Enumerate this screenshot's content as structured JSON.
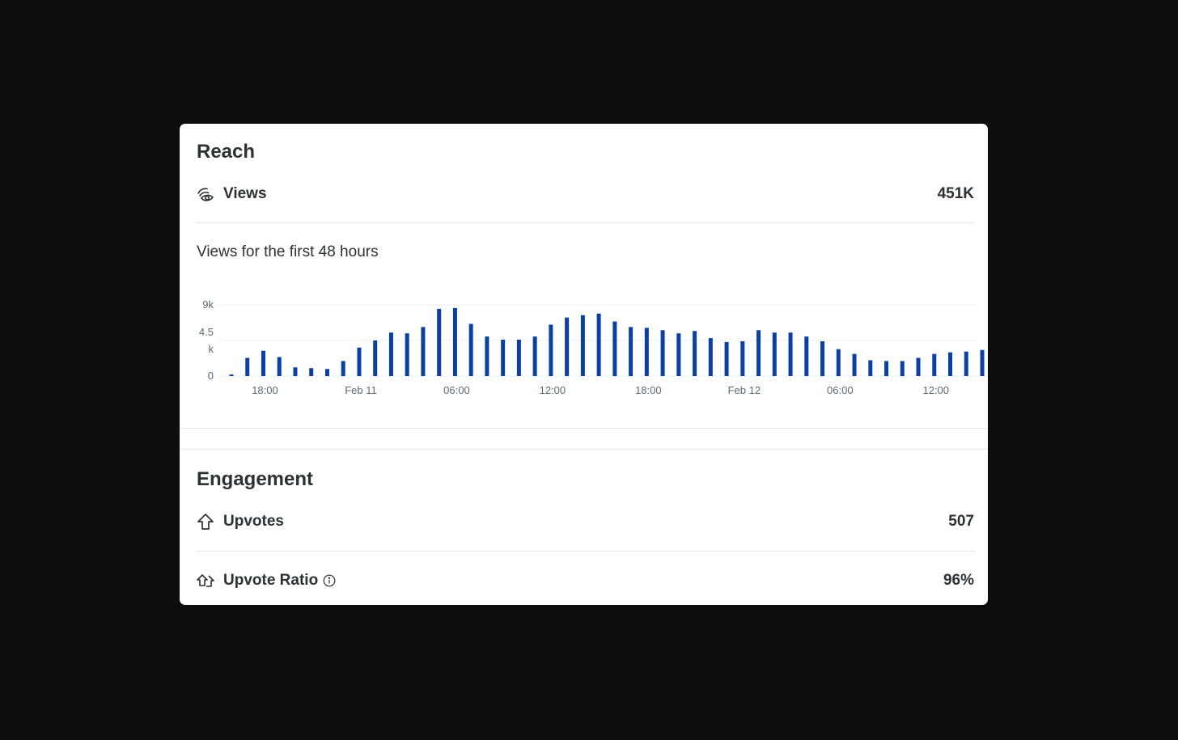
{
  "reach": {
    "title": "Reach",
    "views_label": "Views",
    "views_value": "451K",
    "chart_caption": "Views for the first 48 hours"
  },
  "engagement": {
    "title": "Engagement",
    "upvotes_label": "Upvotes",
    "upvotes_value": "507",
    "ratio_label": "Upvote Ratio",
    "ratio_value": "96%"
  },
  "icons": {
    "views": "eye-icon",
    "upvotes": "upvote-arrow-icon",
    "ratio": "double-upvote-arrow-icon",
    "info": "info-icon"
  },
  "colors": {
    "bar": "#0b3fa3",
    "background": "#0d0d0e",
    "card": "#ffffff"
  },
  "chart_data": {
    "type": "bar",
    "title": "",
    "xlabel": "",
    "ylabel": "",
    "ylim": [
      0,
      9000
    ],
    "y_ticks": [
      "0",
      "4.5\nk",
      "9k"
    ],
    "x_tick_labels": [
      "18:00",
      "Feb 11",
      "06:00",
      "12:00",
      "18:00",
      "Feb 12",
      "06:00",
      "12:00"
    ],
    "grid": true,
    "values": [
      200,
      2300,
      3200,
      2400,
      1100,
      1000,
      900,
      1900,
      3600,
      4500,
      5500,
      5400,
      6200,
      8500,
      8600,
      6600,
      5000,
      4600,
      4600,
      5000,
      6500,
      7400,
      7700,
      7900,
      6900,
      6200,
      6100,
      5800,
      5400,
      5700,
      4800,
      4300,
      4400,
      5800,
      5500,
      5500,
      5000,
      4400,
      3400,
      2800,
      2000,
      1900,
      1900,
      2300,
      2800,
      3000,
      3100,
      3300
    ]
  }
}
